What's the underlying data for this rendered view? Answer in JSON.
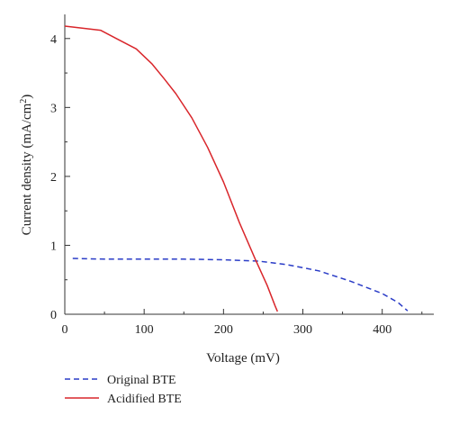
{
  "chart_data": {
    "type": "line",
    "xlabel": "Voltage (mV)",
    "ylabel": "Current density (mA/cm",
    "ylabel_sup": "2",
    "ylabel_tail": ")",
    "xlim": [
      0,
      465
    ],
    "ylim": [
      0,
      4.35
    ],
    "xticks": [
      0,
      100,
      200,
      300,
      400
    ],
    "yticks": [
      0,
      1,
      2,
      3,
      4
    ],
    "grid": false,
    "legend_position": "bottom-left",
    "series": [
      {
        "name": "Original BTE",
        "color": "#2a3cc7",
        "style": "dashed",
        "x": [
          10,
          50,
          100,
          150,
          200,
          245,
          280,
          320,
          360,
          400,
          420,
          432
        ],
        "y": [
          0.81,
          0.8,
          0.8,
          0.8,
          0.79,
          0.77,
          0.72,
          0.63,
          0.48,
          0.3,
          0.17,
          0.05
        ]
      },
      {
        "name": "Acidified BTE",
        "color": "#d9262b",
        "style": "solid",
        "x": [
          0,
          45,
          65,
          90,
          110,
          125,
          140,
          160,
          180,
          200,
          220,
          240,
          255,
          265,
          268
        ],
        "y": [
          4.18,
          4.12,
          4.0,
          3.85,
          3.63,
          3.42,
          3.2,
          2.85,
          2.42,
          1.92,
          1.33,
          0.8,
          0.42,
          0.12,
          0.04
        ]
      }
    ]
  }
}
